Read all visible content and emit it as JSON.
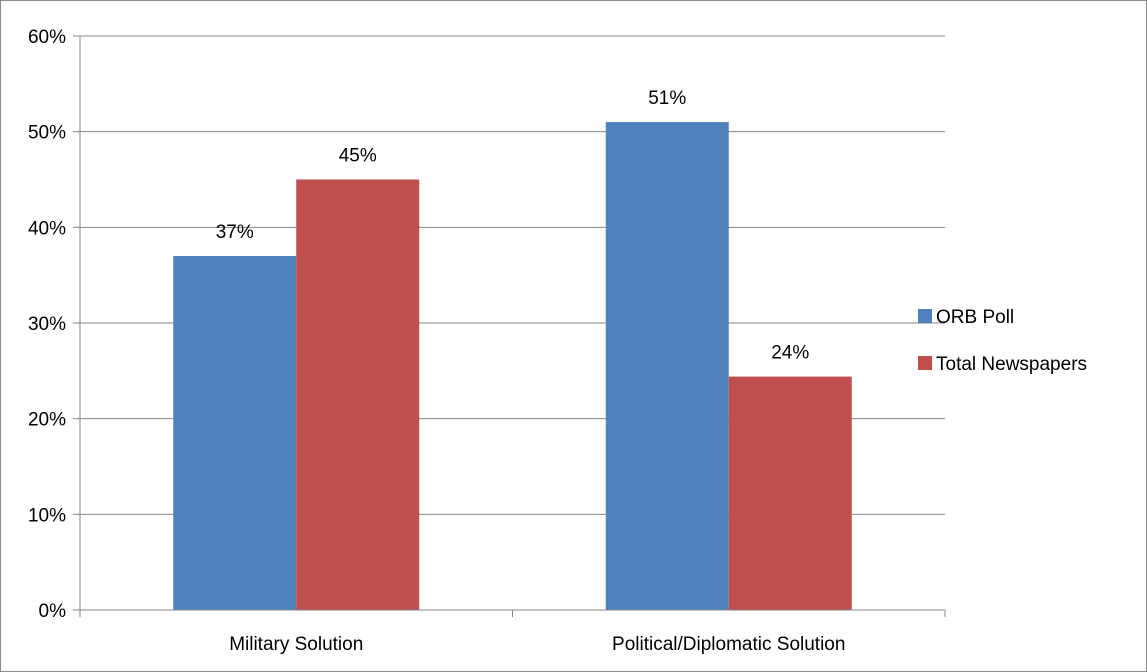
{
  "chart_data": {
    "type": "bar",
    "title": "",
    "xlabel": "",
    "ylabel": "",
    "categories": [
      "Military Solution",
      "Political/Diplomatic Solution"
    ],
    "series": [
      {
        "name": "ORB Poll",
        "color": "#4f81bd",
        "values": [
          37,
          51
        ],
        "labels": [
          "37%",
          "51%"
        ]
      },
      {
        "name": "Total Newspapers",
        "color": "#c0504d",
        "values": [
          45,
          24.4
        ],
        "labels": [
          "45%",
          "24%"
        ]
      }
    ],
    "ylim": [
      0,
      60
    ],
    "y_ticks": [
      0,
      10,
      20,
      30,
      40,
      50,
      60
    ],
    "y_tick_labels": [
      "0%",
      "10%",
      "20%",
      "30%",
      "40%",
      "50%",
      "60%"
    ],
    "grid": true,
    "legend_position": "right"
  }
}
